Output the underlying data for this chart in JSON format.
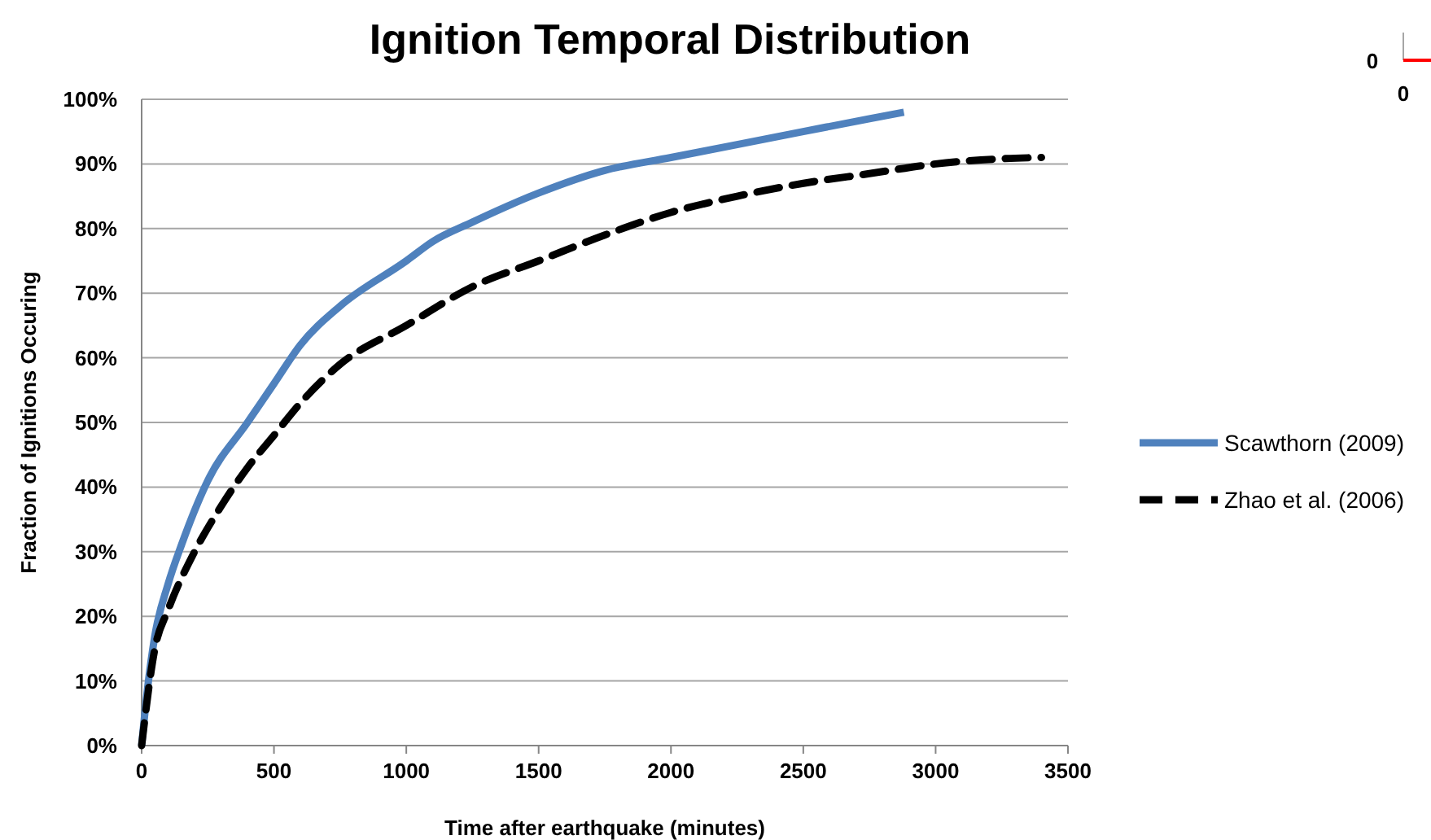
{
  "chart_data": {
    "type": "line",
    "title": "Ignition Temporal Distribution",
    "xlabel": "Time after earthquake (minutes)",
    "ylabel": "Fraction of Ignitions Occuring",
    "xlim": [
      0,
      3500
    ],
    "xticks": [
      0,
      500,
      1000,
      1500,
      2000,
      2500,
      3000,
      3500
    ],
    "ylim": [
      0,
      100
    ],
    "yticks": [
      {
        "value": 0,
        "label": "0%"
      },
      {
        "value": 10,
        "label": "10%"
      },
      {
        "value": 20,
        "label": "20%"
      },
      {
        "value": 30,
        "label": "30%"
      },
      {
        "value": 40,
        "label": "40%"
      },
      {
        "value": 50,
        "label": "50%"
      },
      {
        "value": 60,
        "label": "60%"
      },
      {
        "value": 70,
        "label": "70%"
      },
      {
        "value": 80,
        "label": "80%"
      },
      {
        "value": 90,
        "label": "90%"
      },
      {
        "value": 100,
        "label": "100%"
      }
    ],
    "grid": "y",
    "legend": "right",
    "annotations": [
      "0",
      "0"
    ],
    "series": [
      {
        "name": "Scawthorn (2009)",
        "color": "#4f81bd",
        "line_style": "solid",
        "x": [
          0,
          20,
          50,
          100,
          150,
          250,
          400,
          500,
          600,
          750,
          1000,
          1100,
          1250,
          1500,
          1750,
          2000,
          2250,
          2500,
          2750,
          2880
        ],
        "values": [
          0,
          8,
          17,
          25,
          31,
          41,
          50,
          56,
          62,
          68,
          75,
          78,
          81,
          85.5,
          89,
          91,
          93,
          95,
          97,
          98
        ]
      },
      {
        "name": "Zhao et al. (2006)",
        "color": "#000000",
        "line_style": "dashed",
        "x": [
          0,
          50,
          100,
          200,
          300,
          400,
          500,
          600,
          750,
          1000,
          1250,
          1500,
          1750,
          2000,
          2250,
          2500,
          2750,
          3000,
          3250,
          3400
        ],
        "values": [
          0,
          15,
          21,
          30,
          37,
          43,
          48,
          53,
          59,
          65,
          71,
          75,
          79,
          82.5,
          85,
          87,
          88.5,
          90,
          90.8,
          91
        ]
      }
    ]
  }
}
